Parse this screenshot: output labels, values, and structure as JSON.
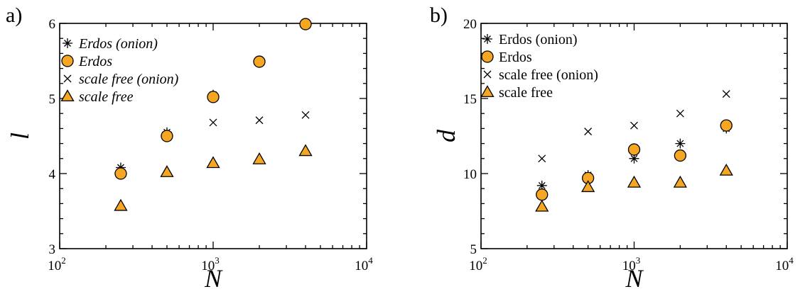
{
  "chart_data": [
    {
      "type": "scatter",
      "panel_label": "a)",
      "xlabel": "N",
      "ylabel": "l",
      "xscale": "log",
      "xlim": [
        100,
        10000
      ],
      "ylim": [
        3,
        6
      ],
      "x_ticks": [
        {
          "base": "10",
          "exp": "2"
        },
        {
          "base": "10",
          "exp": "3"
        },
        {
          "base": "10",
          "exp": "4"
        }
      ],
      "y_ticks": [
        "3",
        "4",
        "5",
        "6"
      ],
      "y_tick_values": [
        3,
        4,
        5,
        6
      ],
      "y_minor_step": 0.2,
      "legend_italic": true,
      "legend_position": "top-left",
      "series": [
        {
          "name": "Erdos (onion)",
          "marker": "asterisk",
          "x": [
            250,
            500,
            1000,
            2000,
            4000
          ],
          "y": [
            4.08,
            4.55,
            5.05,
            5.5,
            6.0
          ]
        },
        {
          "name": "Erdos",
          "marker": "circle",
          "color": "#f5a623",
          "x": [
            250,
            500,
            1000,
            2000,
            4000
          ],
          "y": [
            4.0,
            4.5,
            5.02,
            5.49,
            5.99
          ]
        },
        {
          "name": "scale free (onion)",
          "marker": "x",
          "x": [
            1000,
            2000,
            4000
          ],
          "y": [
            4.68,
            4.71,
            4.78
          ]
        },
        {
          "name": "scale free",
          "marker": "triangle",
          "color": "#f5a623",
          "x": [
            250,
            500,
            1000,
            2000,
            4000
          ],
          "y": [
            3.57,
            4.02,
            4.14,
            4.19,
            4.3
          ]
        }
      ]
    },
    {
      "type": "scatter",
      "panel_label": "b)",
      "xlabel": "N",
      "ylabel": "d",
      "xscale": "log",
      "xlim": [
        100,
        10000
      ],
      "ylim": [
        5,
        20
      ],
      "x_ticks": [
        {
          "base": "10",
          "exp": "2"
        },
        {
          "base": "10",
          "exp": "3"
        },
        {
          "base": "10",
          "exp": "4"
        }
      ],
      "y_ticks": [
        "5",
        "10",
        "15",
        "20"
      ],
      "y_tick_values": [
        5,
        10,
        15,
        20
      ],
      "y_minor_step": 1,
      "legend_italic": false,
      "legend_position": "top-left",
      "series": [
        {
          "name": "Erdos (onion)",
          "marker": "asterisk",
          "x": [
            250,
            500,
            1000,
            2000,
            4000
          ],
          "y": [
            9.2,
            9.9,
            11.0,
            12.0,
            13.0
          ]
        },
        {
          "name": "Erdos",
          "marker": "circle",
          "color": "#f5a623",
          "x": [
            250,
            500,
            1000,
            2000,
            4000
          ],
          "y": [
            8.6,
            9.7,
            11.6,
            11.2,
            13.2
          ]
        },
        {
          "name": "scale free (onion)",
          "marker": "x",
          "x": [
            250,
            500,
            1000,
            2000,
            4000
          ],
          "y": [
            11.0,
            12.8,
            13.2,
            14.0,
            15.3
          ]
        },
        {
          "name": "scale free",
          "marker": "triangle",
          "color": "#f5a623",
          "x": [
            250,
            500,
            1000,
            2000,
            4000
          ],
          "y": [
            7.8,
            9.1,
            9.4,
            9.4,
            10.2
          ]
        }
      ]
    }
  ]
}
